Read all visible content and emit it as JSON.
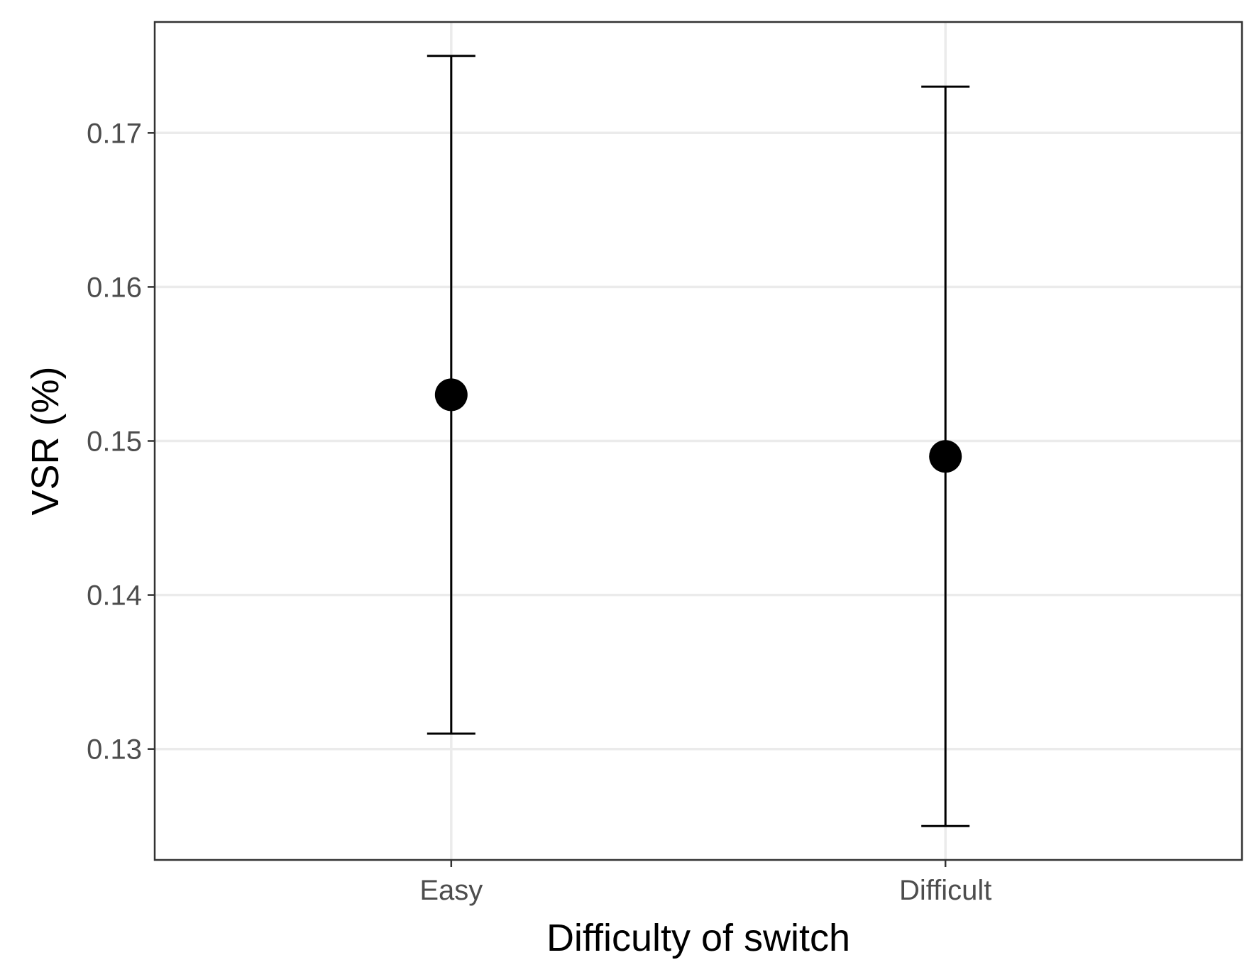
{
  "chart_data": {
    "type": "scatter",
    "xlabel": "Difficulty of switch",
    "ylabel": "VSR (%)",
    "categories": [
      "Easy",
      "Difficult"
    ],
    "values": [
      0.153,
      0.149
    ],
    "error_low": [
      0.131,
      0.125
    ],
    "error_high": [
      0.175,
      0.173
    ],
    "ylim": [
      0.1228,
      0.1772
    ],
    "yticks": [
      0.13,
      0.14,
      0.15,
      0.16,
      0.17
    ],
    "ytick_labels": [
      "0.13",
      "0.14",
      "0.15",
      "0.16",
      "0.17"
    ],
    "grid": true,
    "colors": {
      "point": "#000000",
      "grid": "#ebebeb",
      "border": "#333333"
    }
  }
}
